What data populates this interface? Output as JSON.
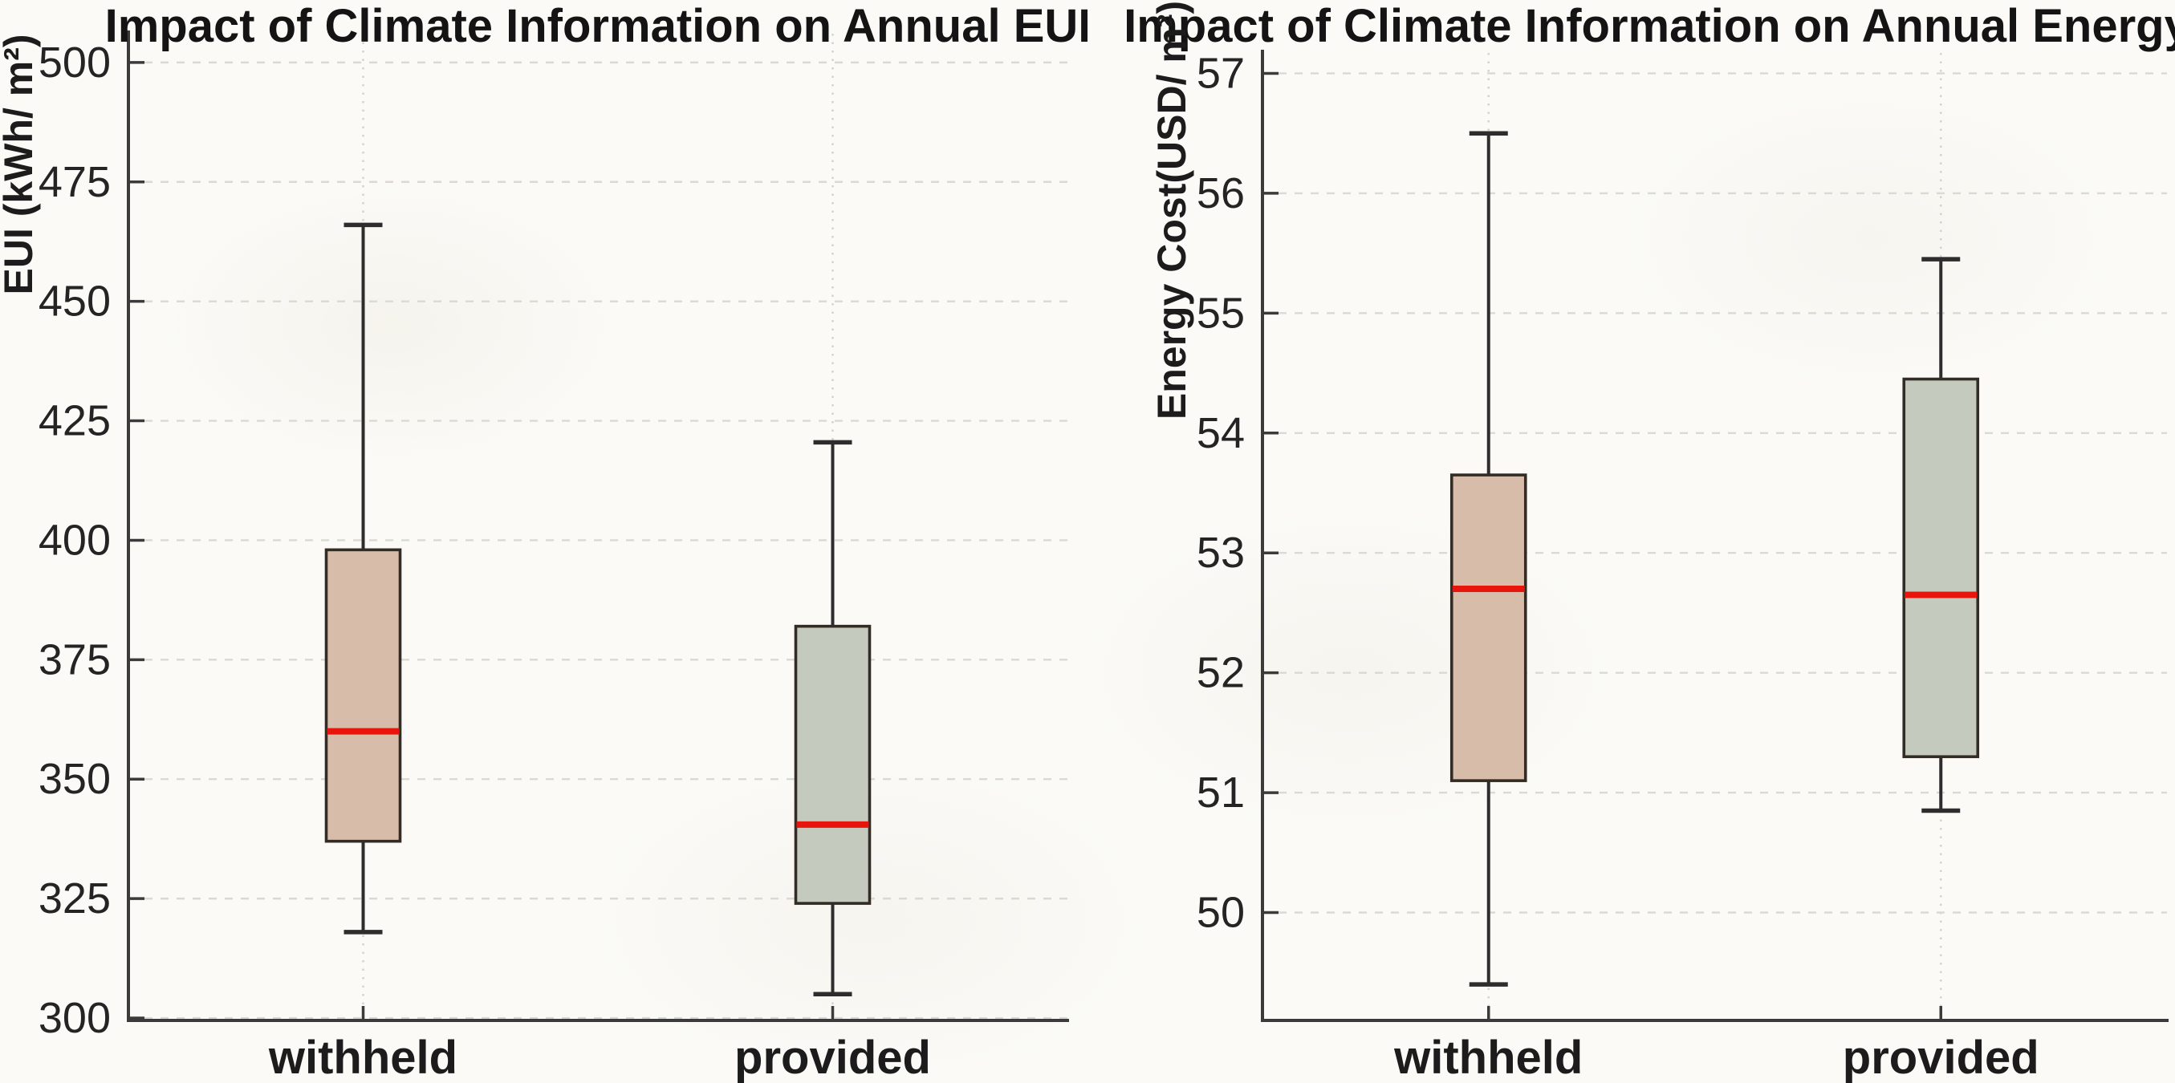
{
  "page": {
    "background_color": "#fbfaf7",
    "description": "Two side-by-side box plots comparing simulations with climate information withheld vs provided"
  },
  "style": {
    "median_color": "#e8150d",
    "box_edge_color": "#332c24",
    "whisker_color": "#2d2d2d",
    "spine_color": "#3b3b3b",
    "h_grid_color": "#dadad3",
    "v_grid_color": "#d2d2cb",
    "withheld_fill": "#d8bcaa",
    "provided_fill": "#c5cabf"
  },
  "chart_data": [
    {
      "type": "boxplot",
      "title": "Impact of Climate Information on Annual EUI",
      "ylabel": "EUI (kWh/ m²)",
      "xlabel": "",
      "categories": [
        "withheld",
        "provided"
      ],
      "ylim": [
        299.5,
        503
      ],
      "yticks": [
        300,
        325,
        350,
        375,
        400,
        425,
        450,
        475,
        500
      ],
      "grid": "dashed horizontal line at each y tick; dotted vertical line at each category; no top or right spine; inward ticks",
      "legend": "none",
      "series": [
        {
          "name": "withheld",
          "whislo": 318,
          "q1": 337,
          "median": 360,
          "q3": 398,
          "whishi": 466,
          "fill": "#d8bcaa"
        },
        {
          "name": "provided",
          "whislo": 305,
          "q1": 324,
          "median": 340.5,
          "q3": 382,
          "whishi": 420.5,
          "fill": "#c5cabf"
        }
      ]
    },
    {
      "type": "boxplot",
      "title": "Impact of Climate Information on Annual Energy Cost",
      "ylabel": "Energy Cost(USD/ m²)",
      "xlabel": "",
      "categories": [
        "withheld",
        "provided"
      ],
      "ylim": [
        49.1,
        57.05
      ],
      "yticks": [
        50,
        51,
        52,
        53,
        54,
        55,
        56,
        57
      ],
      "grid": "dashed horizontal line at each y tick; dotted vertical line at each category; no top or right spine; inward ticks",
      "legend": "none",
      "series": [
        {
          "name": "withheld",
          "whislo": 49.4,
          "q1": 51.1,
          "median": 52.7,
          "q3": 53.65,
          "whishi": 56.5,
          "fill": "#d8bcaa"
        },
        {
          "name": "provided",
          "whislo": 50.85,
          "q1": 51.3,
          "median": 52.65,
          "q3": 54.45,
          "whishi": 55.45,
          "fill": "#c5cabf"
        }
      ]
    }
  ]
}
